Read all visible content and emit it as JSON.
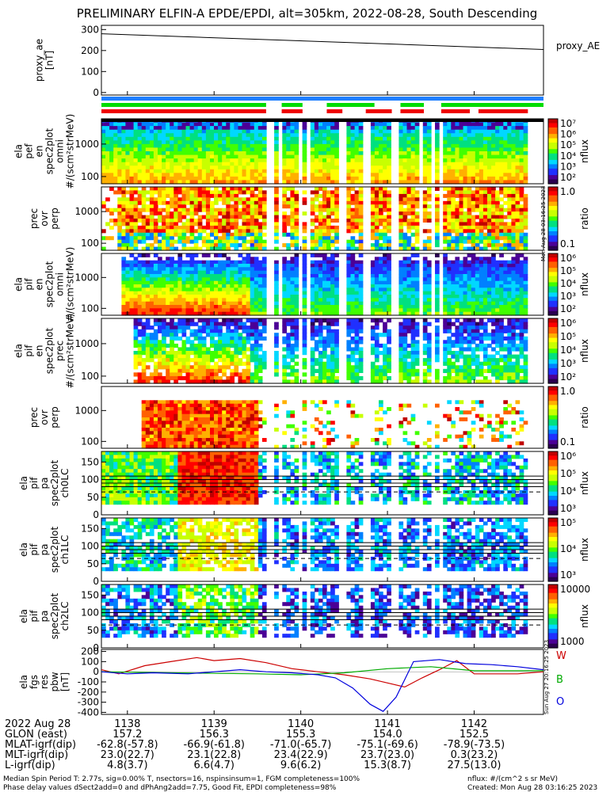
{
  "title": "PRELIMINARY ELFIN-A EPDE/EPDI, alt=305km, 2022-08-28, South Descending",
  "panels": [
    {
      "id": "proxy",
      "ylabel": [
        "proxy_ae",
        "[nT]"
      ],
      "yticks": [
        "300",
        "200",
        "100",
        "0"
      ],
      "legend": "proxy_AE"
    },
    {
      "id": "p1",
      "ylabel": [
        "ela",
        "pef",
        "en",
        "spec2plot",
        "omni",
        "#/(scm²strMeV)"
      ],
      "yticks": [
        "1000",
        "100"
      ],
      "cblabel": "nflux",
      "cbticks": [
        "10⁷",
        "10⁶",
        "10⁵",
        "10⁴",
        "10³",
        "10²"
      ]
    },
    {
      "id": "p2",
      "ylabel": [
        "prec",
        "ovr",
        "perp"
      ],
      "yticks": [
        "1000",
        "100"
      ],
      "cblabel": "ratio",
      "cbticks": [
        "1.0",
        "0.1"
      ]
    },
    {
      "id": "p3",
      "ylabel": [
        "ela",
        "pif",
        "en",
        "spec2plot",
        "omni",
        "#/(scm²strMeV)"
      ],
      "yticks": [
        "1000",
        "100"
      ],
      "cblabel": "nflux",
      "cbticks": [
        "10⁶",
        "10⁵",
        "10⁴",
        "10³",
        "10²"
      ]
    },
    {
      "id": "p4",
      "ylabel": [
        "ela",
        "pif",
        "en",
        "spec2plot",
        "prec",
        "#/(scm²strMeV)"
      ],
      "yticks": [
        "1000",
        "100"
      ],
      "cblabel": "nflux",
      "cbticks": [
        "10⁶",
        "10⁵",
        "10⁴",
        "10³",
        "10²"
      ]
    },
    {
      "id": "p5",
      "ylabel": [
        "prec",
        "ovr",
        "perp"
      ],
      "yticks": [
        "1000",
        "100"
      ],
      "cblabel": "ratio",
      "cbticks": [
        "1.0",
        "0.1"
      ]
    },
    {
      "id": "p6",
      "ylabel": [
        "ela",
        "pif",
        "pa",
        "spec2plot",
        "ch0LC"
      ],
      "yticks": [
        "150",
        "100",
        "50",
        "0"
      ],
      "cblabel": "nflux",
      "cbticks": [
        "10⁶",
        "10⁵",
        "10⁴",
        "10³"
      ]
    },
    {
      "id": "p7",
      "ylabel": [
        "ela",
        "pif",
        "pa",
        "spec2plot",
        "ch1LC"
      ],
      "yticks": [
        "150",
        "100",
        "50",
        "0"
      ],
      "cblabel": "nflux",
      "cbticks": [
        "10⁵",
        "10⁴",
        "10³"
      ]
    },
    {
      "id": "p8",
      "ylabel": [
        "ela",
        "pif",
        "pa",
        "spec2plot",
        "ch2LC"
      ],
      "yticks": [
        "150",
        "100",
        "50",
        "0"
      ],
      "cblabel": "nflux",
      "cbticks": [
        "10000",
        "1000"
      ]
    },
    {
      "id": "p9",
      "ylabel": [
        "ela",
        "fgs",
        "res",
        "pbw",
        "[nT]"
      ],
      "yticks": [
        "200",
        "100",
        "0",
        "-100",
        "-200",
        "-300",
        "-400"
      ],
      "legend": [
        "W",
        "B",
        "O"
      ]
    }
  ],
  "x_axis": {
    "date": "2022 Aug 28",
    "times": [
      "1138",
      "1139",
      "1140",
      "1141",
      "1142"
    ],
    "rows": [
      {
        "label": "GLON (east)",
        "values": [
          "157.2",
          "156.3",
          "155.3",
          "154.0",
          "152.5"
        ]
      },
      {
        "label": "MLAT-igrf(dip)",
        "values": [
          "-62.8(-57.8)",
          "-66.9(-61.8)",
          "-71.0(-65.7)",
          "-75.1(-69.6)",
          "-78.9(-73.5)"
        ]
      },
      {
        "label": "MLT-igrf(dip)",
        "values": [
          "23.0(22.7)",
          "23.1(22.8)",
          "23.4(22.9)",
          "23.7(23.0)",
          "0.3(23.2)"
        ]
      },
      {
        "label": "L-igrf(dip)",
        "values": [
          "4.8(3.7)",
          "6.6(4.7)",
          "9.6(6.2)",
          "15.3(8.7)",
          "27.5(13.0)"
        ]
      }
    ]
  },
  "footer": {
    "line1": "Median Spin Period T: 2.77s, sig=0.00% T, nsectors=16, nspinsinsum=1, FGM completeness=100%",
    "line2": "Phase delay values dSect2add=0 and dPhAng2add=7.75, Good Fit, EPDI completeness=98%",
    "right1": "nflux: #/(cm^2 s sr MeV)",
    "right2": "Created: Mon Aug 28 03:16:25 2023"
  },
  "side_stamps": {
    "upper": "Mon Aug 28 03:16:25 2023",
    "lower": "Sun Aug 27 20:16:25 2023"
  },
  "colors": {
    "W": "#cc0000",
    "B": "#00aa00",
    "O": "#0000dd",
    "proxy": "#000000",
    "bar_blue": "#1f7fff",
    "bar_green": "#00dd00",
    "bar_red": "#ee0000"
  },
  "chart_data": [
    {
      "type": "line",
      "title": "proxy_AE",
      "ylabel": "proxy_ae [nT]",
      "ylim": [
        0,
        320
      ],
      "series": [
        {
          "name": "proxy_AE",
          "x": [
            "1137.7",
            "1142.8"
          ],
          "values": [
            280,
            205
          ]
        }
      ]
    },
    {
      "type": "heatmap",
      "ylabel": "ela pef en spec2plot omni",
      "scale": "log",
      "ylim": [
        60,
        6000
      ],
      "cbrange": [
        "1e2",
        "1e7"
      ]
    },
    {
      "type": "heatmap",
      "ylabel": "prec ovr perp",
      "scale": "log",
      "ylim": [
        60,
        6000
      ],
      "cbrange": [
        "0.1",
        "1.0"
      ]
    },
    {
      "type": "heatmap",
      "ylabel": "ela pif en spec2plot omni",
      "scale": "log",
      "ylim": [
        60,
        6000
      ],
      "cbrange": [
        "1e2",
        "1e6"
      ]
    },
    {
      "type": "heatmap",
      "ylabel": "ela pif en spec2plot prec",
      "scale": "log",
      "ylim": [
        60,
        6000
      ],
      "cbrange": [
        "1e2",
        "1e6"
      ]
    },
    {
      "type": "heatmap",
      "ylabel": "prec ovr perp",
      "scale": "log",
      "ylim": [
        60,
        6000
      ],
      "cbrange": [
        "0.1",
        "1.0"
      ]
    },
    {
      "type": "heatmap",
      "ylabel": "ela pif pa spec2plot ch0LC",
      "ylim": [
        0,
        180
      ],
      "cbrange": [
        "1e3",
        "1e6"
      ]
    },
    {
      "type": "heatmap",
      "ylabel": "ela pif pa spec2plot ch1LC",
      "ylim": [
        0,
        180
      ],
      "cbrange": [
        "1e3",
        "1e5"
      ]
    },
    {
      "type": "heatmap",
      "ylabel": "ela pif pa spec2plot ch2LC",
      "ylim": [
        0,
        180
      ],
      "cbrange": [
        "1000",
        "10000"
      ]
    },
    {
      "type": "line",
      "ylabel": "ela fgs res pbw [nT]",
      "ylim": [
        -420,
        220
      ],
      "series": [
        {
          "name": "W",
          "x": [
            1137.7,
            1137.9,
            1138.2,
            1138.5,
            1138.8,
            1139.0,
            1139.3,
            1139.6,
            1139.9,
            1140.2,
            1140.5,
            1140.8,
            1141.0,
            1141.2,
            1141.4,
            1141.6,
            1141.8,
            1142.0,
            1142.2,
            1142.5,
            1142.8
          ],
          "values": [
            20,
            -20,
            60,
            100,
            140,
            110,
            130,
            90,
            30,
            0,
            -30,
            -70,
            -110,
            -150,
            -60,
            20,
            110,
            -20,
            -20,
            -20,
            0
          ]
        },
        {
          "name": "B",
          "x": [
            1137.7,
            1138.5,
            1139.5,
            1140.0,
            1140.5,
            1141.0,
            1141.5,
            1142.0,
            1142.8
          ],
          "values": [
            0,
            -10,
            -20,
            -30,
            -10,
            30,
            50,
            10,
            10
          ]
        },
        {
          "name": "O",
          "x": [
            1137.7,
            1138.0,
            1138.3,
            1138.7,
            1139.0,
            1139.3,
            1139.6,
            1139.9,
            1140.2,
            1140.4,
            1140.6,
            1140.8,
            1140.95,
            1141.1,
            1141.3,
            1141.6,
            1141.9,
            1142.2,
            1142.5,
            1142.8
          ],
          "values": [
            0,
            -20,
            -10,
            -20,
            0,
            20,
            0,
            -10,
            -30,
            -60,
            -160,
            -320,
            -390,
            -250,
            100,
            120,
            80,
            70,
            50,
            20
          ]
        }
      ]
    }
  ]
}
